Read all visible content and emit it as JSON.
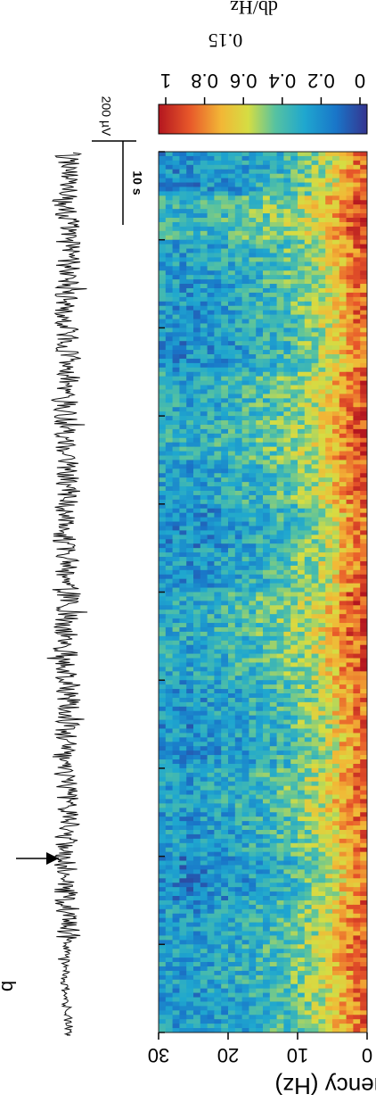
{
  "chart_data": [
    {
      "type": "line",
      "title": "",
      "panel_letter": "b",
      "scale_bars": {
        "amplitude_label": "200 µV",
        "time_label": "10 s"
      },
      "marker": "arrow",
      "event_time_fraction": 0.2
    },
    {
      "type": "heatmap",
      "ylabel": "Frequency (Hz)",
      "ylim": [
        0,
        30
      ],
      "yticks": [
        0,
        10,
        20,
        30
      ],
      "xlabel": "",
      "colorbar": {
        "label": "db/Hz",
        "scale_note": "0.15",
        "range": [
          0,
          1
        ],
        "ticks": [
          {
            "label": "0",
            "value": 0
          },
          {
            "label": "0.2",
            "value": 0.2
          },
          {
            "label": "0.4",
            "value": 0.4
          },
          {
            "label": "0.6",
            "value": 0.6
          },
          {
            "label": "0.8",
            "value": 0.8
          },
          {
            "label": "1",
            "value": 1
          }
        ],
        "colors": [
          "#35348f",
          "#1976c9",
          "#1fa7cf",
          "#56c2a1",
          "#d5dd43",
          "#f2b736",
          "#e8582a",
          "#b3161f"
        ]
      },
      "time_ticks_count": 10,
      "description_rows": [
        {
          "freq": 1,
          "level": 0.85
        },
        {
          "freq": 3,
          "level": 0.75
        },
        {
          "freq": 5,
          "level": 0.62
        },
        {
          "freq": 8,
          "level": 0.5
        },
        {
          "freq": 12,
          "level": 0.4
        },
        {
          "freq": 18,
          "level": 0.32
        },
        {
          "freq": 25,
          "level": 0.25
        },
        {
          "freq": 30,
          "level": 0.28
        }
      ],
      "time_profile": [
        0.3,
        0.55,
        0.4,
        0.35,
        0.3,
        0.45,
        0.5,
        0.4,
        0.3,
        0.35,
        0.5,
        0.45,
        0.35,
        0.3,
        0.4,
        0.35,
        0.25,
        0.35,
        0.4,
        0.35
      ]
    }
  ]
}
